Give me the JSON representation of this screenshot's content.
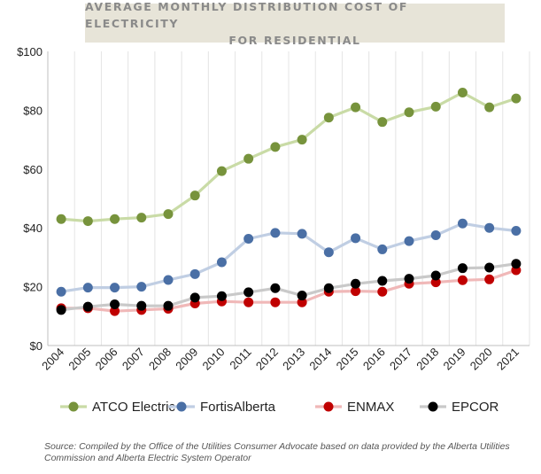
{
  "chart_data": {
    "type": "line",
    "title": "AVERAGE MONTHLY DISTRIBUTION COST OF ELECTRICITY FOR RESIDENTIAL",
    "title_lines": [
      "AVERAGE MONTHLY DISTRIBUTION COST OF ELECTRICITY",
      "FOR RESIDENTIAL"
    ],
    "xlabel": "",
    "ylabel": "",
    "x": [
      "2004",
      "2005",
      "2006",
      "2007",
      "2008",
      "2009",
      "2010",
      "2011",
      "2012",
      "2013",
      "2014",
      "2015",
      "2016",
      "2017",
      "2018",
      "2019",
      "2020",
      "2021"
    ],
    "ylim": [
      0,
      100
    ],
    "yticks": [
      0,
      20,
      40,
      60,
      80,
      100
    ],
    "ytick_labels": [
      "$0",
      "$20",
      "$40",
      "$60",
      "$80",
      "$100"
    ],
    "grid": "vertical",
    "legend_position": "bottom",
    "series": [
      {
        "name": "ATCO Electric",
        "color": "#77933c",
        "line_color": "#c9dba6",
        "values": [
          43,
          42.3,
          43,
          43.5,
          44.7,
          51,
          59.3,
          63.5,
          67.5,
          70,
          77.5,
          81,
          76,
          79.3,
          81.2,
          86,
          81,
          84
        ]
      },
      {
        "name": "FortisAlberta",
        "color": "#4a6fa5",
        "line_color": "#c0cee3",
        "values": [
          18.3,
          19.7,
          19.7,
          20,
          22.3,
          24.3,
          28.3,
          36.3,
          38.3,
          38,
          31.7,
          36.5,
          32.7,
          35.5,
          37.5,
          41.5,
          40,
          39
        ]
      },
      {
        "name": "ENMAX",
        "color": "#c00000",
        "line_color": "#f0b8b8",
        "values": [
          12.7,
          12.7,
          11.7,
          12.1,
          12.5,
          14.3,
          15,
          14.7,
          14.7,
          14.7,
          18.3,
          18.5,
          18.3,
          21,
          21.5,
          22.2,
          22.5,
          25.6
        ]
      },
      {
        "name": "EPCOR",
        "color": "#000000",
        "line_color": "#c9c9c9",
        "values": [
          12.1,
          13.2,
          14,
          13.5,
          13.5,
          16.3,
          16.8,
          18.1,
          19.5,
          17,
          19.5,
          21,
          22,
          22.7,
          23.8,
          26.3,
          26.5,
          27.8
        ]
      }
    ]
  },
  "source_note": "Source: Compiled by the Office of the Utilities Consumer Advocate based on data provided by the Alberta Utilities Commission and Alberta Electric System Operator"
}
